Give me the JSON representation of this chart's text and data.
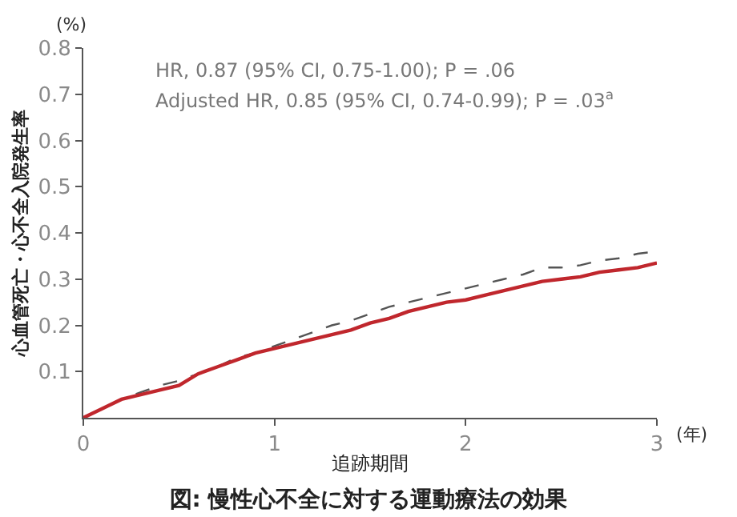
{
  "chart_data": {
    "type": "line",
    "title": "図: 慢性心不全に対する運動療法の効果",
    "xlabel": "追跡期間",
    "ylabel": "心血管死亡・心不全入院発生率",
    "annotations": [
      "HR, 0.87 (95% CI, 0.75-1.00); P = .06",
      "Adjusted HR, 0.85 (95% CI, 0.74-0.99); P = .03$^{a}$",
      "(%)",
      "(年)"
    ],
    "x": [
      0,
      0.1,
      0.2,
      0.3,
      0.4,
      0.5,
      0.6,
      0.7,
      0.8,
      0.9,
      1.0,
      1.1,
      1.2,
      1.3,
      1.4,
      1.5,
      1.6,
      1.7,
      1.8,
      1.9,
      2.0,
      2.1,
      2.2,
      2.3,
      2.4,
      2.5,
      2.6,
      2.7,
      2.8,
      2.9,
      3.0
    ],
    "series": [
      {
        "color": "#555555",
        "line_style": "dashed",
        "values": [
          0,
          0.02,
          0.04,
          0.055,
          0.07,
          0.08,
          0.095,
          0.11,
          0.13,
          0.14,
          0.155,
          0.17,
          0.185,
          0.2,
          0.21,
          0.225,
          0.24,
          0.25,
          0.26,
          0.27,
          0.28,
          0.29,
          0.3,
          0.31,
          0.325,
          0.325,
          0.33,
          0.34,
          0.345,
          0.355,
          0.36
        ]
      },
      {
        "color": "#c0272d",
        "line_style": "solid",
        "values": [
          0,
          0.02,
          0.04,
          0.05,
          0.06,
          0.07,
          0.095,
          0.11,
          0.125,
          0.14,
          0.15,
          0.16,
          0.17,
          0.18,
          0.19,
          0.205,
          0.215,
          0.23,
          0.24,
          0.25,
          0.255,
          0.265,
          0.275,
          0.285,
          0.295,
          0.3,
          0.305,
          0.315,
          0.32,
          0.325,
          0.335
        ]
      }
    ],
    "xlim": [
      0,
      3
    ],
    "xticks": [
      0,
      1,
      2,
      3
    ],
    "ylim": [
      0,
      0.8
    ],
    "yticks": [
      0.1,
      0.2,
      0.3,
      0.4,
      0.5,
      0.6,
      0.7,
      0.8
    ]
  }
}
